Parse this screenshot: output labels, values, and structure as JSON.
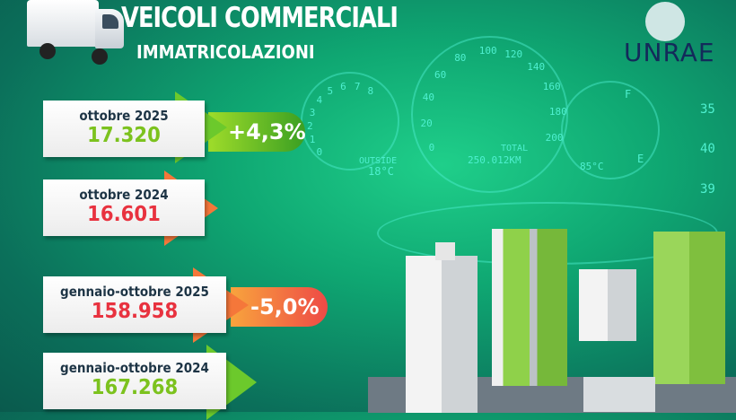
{
  "header": {
    "title": "VEICOLI COMMERCIALI",
    "subtitle": "IMMATRICOLAZIONI",
    "logo": "UNRAE"
  },
  "stats": [
    {
      "label": "ottobre 2025",
      "value": "17.320",
      "color": "#7cc21e"
    },
    {
      "label": "ottobre 2024",
      "value": "16.601",
      "color": "#e8323f"
    },
    {
      "label": "gennaio-ottobre 2025",
      "value": "158.958",
      "color": "#e8323f"
    },
    {
      "label": "gennaio-ottobre 2024",
      "value": "167.268",
      "color": "#7cc21e"
    }
  ],
  "changes": {
    "monthly": "+4,3%",
    "ytd": "-5,0%"
  },
  "dashboard": {
    "outside_label": "OUTSIDE",
    "outside_temp": "18°C",
    "total_label": "TOTAL",
    "total_km": "250.012KM",
    "engine_temp": "85°C",
    "fuel_full": "F",
    "fuel_empty": "E",
    "psi": [
      "35",
      "40",
      "39"
    ],
    "speed_ticks": [
      "0",
      "20",
      "40",
      "60",
      "80",
      "100",
      "120",
      "140",
      "160",
      "180",
      "200"
    ],
    "rpm_ticks": [
      "0",
      "1",
      "2",
      "3",
      "4",
      "5",
      "6",
      "7",
      "8"
    ]
  },
  "colors": {
    "positive": "#7cc21e",
    "negative": "#e8323f",
    "label": "#1d3445"
  }
}
